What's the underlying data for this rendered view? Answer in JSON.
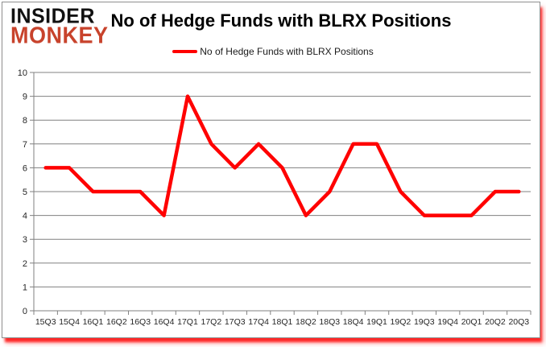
{
  "logo": {
    "line1": "INSIDER",
    "line2": "MONKEY"
  },
  "header": {
    "title": "No of Hedge Funds with BLRX Positions"
  },
  "legend": {
    "label": "No of Hedge Funds with BLRX Positions"
  },
  "chart_data": {
    "type": "line",
    "title": "No of Hedge Funds with BLRX Positions",
    "categories": [
      "15Q3",
      "15Q4",
      "16Q1",
      "16Q2",
      "16Q3",
      "16Q4",
      "17Q1",
      "17Q2",
      "17Q3",
      "17Q4",
      "18Q1",
      "18Q2",
      "18Q3",
      "18Q4",
      "19Q1",
      "19Q2",
      "19Q3",
      "19Q4",
      "20Q1",
      "20Q2",
      "20Q3"
    ],
    "series": [
      {
        "name": "No of Hedge Funds with BLRX Positions",
        "color": "#FF0000",
        "values": [
          6,
          6,
          5,
          5,
          5,
          4,
          9,
          7,
          6,
          7,
          6,
          4,
          5,
          7,
          7,
          5,
          4,
          4,
          4,
          5,
          5
        ]
      }
    ],
    "xlabel": "",
    "ylabel": "",
    "ylim": [
      0,
      10
    ],
    "yticks": [
      0,
      1,
      2,
      3,
      4,
      5,
      6,
      7,
      8,
      9,
      10
    ],
    "grid": true,
    "legend_position": "top"
  },
  "colors": {
    "line": "#FF0000",
    "grid": "#808080",
    "axis": "#808080",
    "tick_label": "#262626",
    "logo_black": "#111111",
    "logo_red": "#C8432C",
    "border": "#8F8F8F",
    "shadow": "#FF0A0A"
  }
}
